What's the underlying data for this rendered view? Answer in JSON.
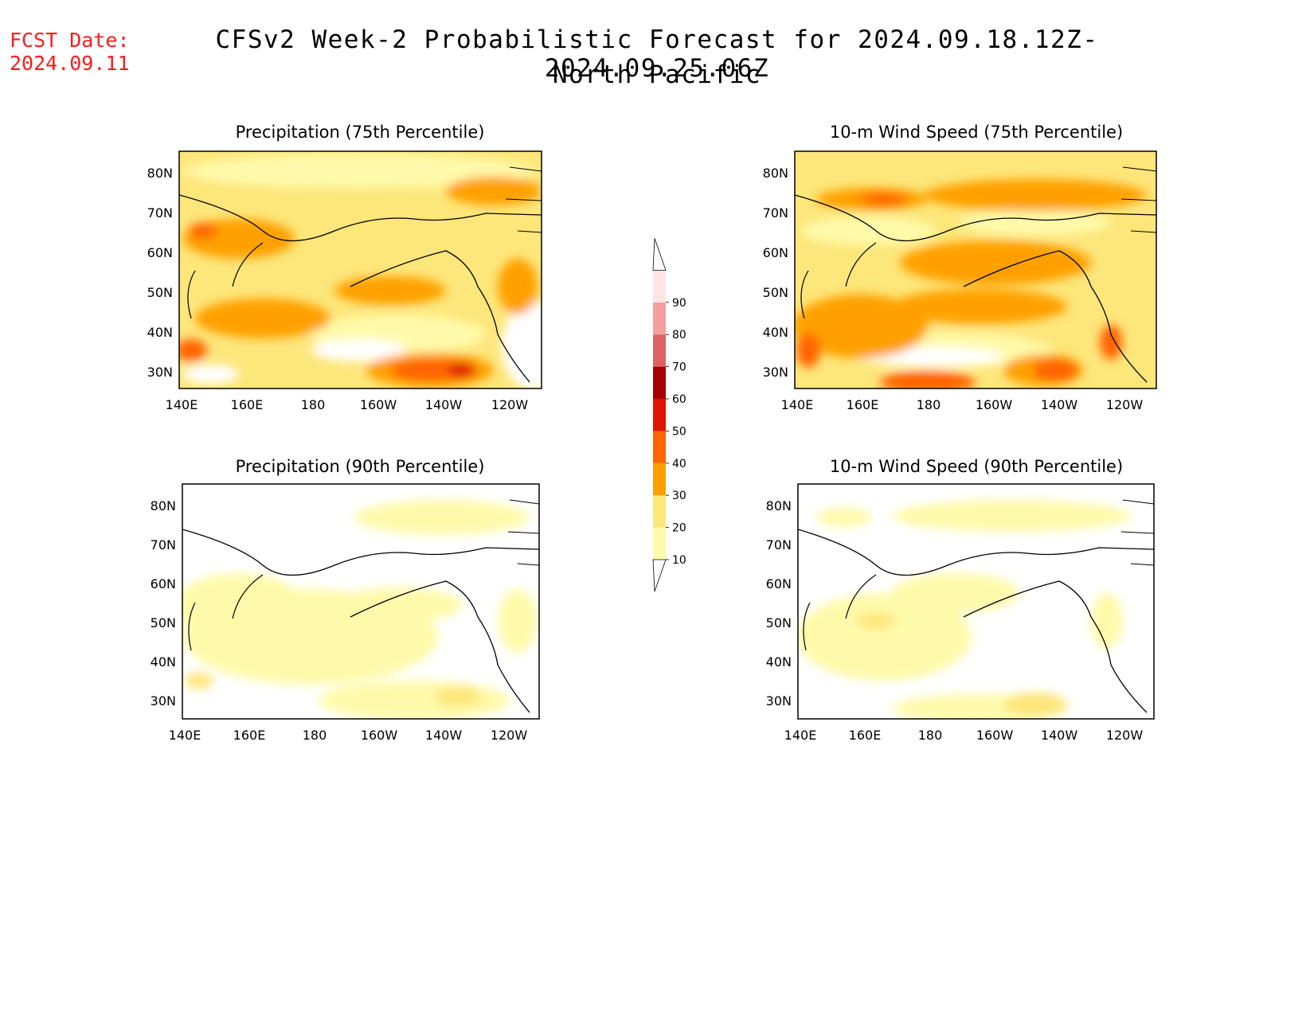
{
  "fcst_date": {
    "label": "FCST Date:",
    "value": "2024.09.11"
  },
  "title": "CFSv2 Week-2 Probabilistic Forecast for 2024.09.18.12Z-2024.09.25.06Z",
  "subtitle": "North Pacific",
  "panels": [
    {
      "id": "precip-75",
      "title": "Precipitation (75th Percentile)"
    },
    {
      "id": "wind-75",
      "title": "10-m Wind Speed (75th Percentile)"
    },
    {
      "id": "precip-90",
      "title": "Precipitation (90th Percentile)"
    },
    {
      "id": "wind-90",
      "title": "10-m Wind Speed (90th Percentile)"
    }
  ],
  "lon_ticks": [
    "140E",
    "160E",
    "180",
    "160W",
    "140W",
    "120W"
  ],
  "lat_ticks": [
    "80N",
    "70N",
    "60N",
    "50N",
    "40N",
    "30N"
  ],
  "colorbar": {
    "levels": [
      "10",
      "20",
      "30",
      "40",
      "50",
      "60",
      "70",
      "80",
      "90"
    ],
    "colors": [
      "#fffaaa",
      "#fde67a",
      "#ffa000",
      "#ff6400",
      "#e01400",
      "#a50000",
      "#dc6464",
      "#f5a0a0",
      "#ffe6e6"
    ]
  }
}
